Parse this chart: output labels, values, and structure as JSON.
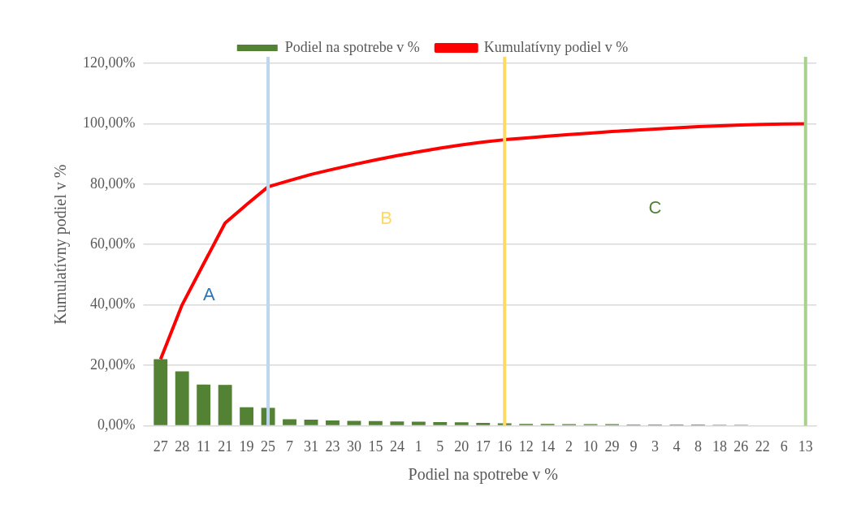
{
  "chart_data": {
    "type": "bar",
    "xlabel": "Podiel na spotrebe v %",
    "ylabel": "Kumulatívny podiel v %",
    "categories": [
      "27",
      "28",
      "11",
      "21",
      "19",
      "25",
      "7",
      "31",
      "23",
      "30",
      "15",
      "24",
      "1",
      "5",
      "20",
      "17",
      "16",
      "12",
      "14",
      "2",
      "10",
      "29",
      "9",
      "3",
      "4",
      "8",
      "18",
      "26",
      "22",
      "6",
      "13"
    ],
    "series": [
      {
        "name": "Podiel na spotrebe v %",
        "color": "#548235",
        "values": [
          22.0,
          18.0,
          13.6,
          13.5,
          6.1,
          5.9,
          2.1,
          2.0,
          1.7,
          1.6,
          1.5,
          1.4,
          1.3,
          1.2,
          1.1,
          0.9,
          0.8,
          0.6,
          0.6,
          0.5,
          0.5,
          0.5,
          0.4,
          0.4,
          0.4,
          0.4,
          0.3,
          0.3,
          null,
          null,
          null
        ]
      },
      {
        "name": "Kumulatívny podiel v %",
        "type": "line",
        "color": "#ff0000",
        "marker": "none",
        "values": [
          22.0,
          40.0,
          53.6,
          67.1,
          73.2,
          79.1,
          81.2,
          83.2,
          84.9,
          86.5,
          88.0,
          89.4,
          90.7,
          91.9,
          93.0,
          93.9,
          94.7,
          95.3,
          95.9,
          96.4,
          96.9,
          97.4,
          97.8,
          98.2,
          98.6,
          99.0,
          99.3,
          99.6,
          99.8,
          99.9,
          100.0
        ]
      }
    ],
    "ylim": [
      0,
      120
    ],
    "yticks": [
      {
        "value": 0,
        "label": "0,00%"
      },
      {
        "value": 20,
        "label": "20,00%"
      },
      {
        "value": 40,
        "label": "40,00%"
      },
      {
        "value": 60,
        "label": "60,00%"
      },
      {
        "value": 80,
        "label": "80,00%"
      },
      {
        "value": 100,
        "label": "100,00%"
      },
      {
        "value": 120,
        "label": "120,00%"
      }
    ],
    "grid": "y",
    "legend": "top",
    "ref_lines": [
      {
        "axis": "x",
        "value": "25",
        "color": "#bdd7ee"
      },
      {
        "axis": "x",
        "value": "16",
        "color": "#ffd966"
      },
      {
        "axis": "x",
        "value": "13",
        "color": "#a9d18e"
      }
    ],
    "annotations": [
      "A",
      "B",
      "C"
    ]
  }
}
